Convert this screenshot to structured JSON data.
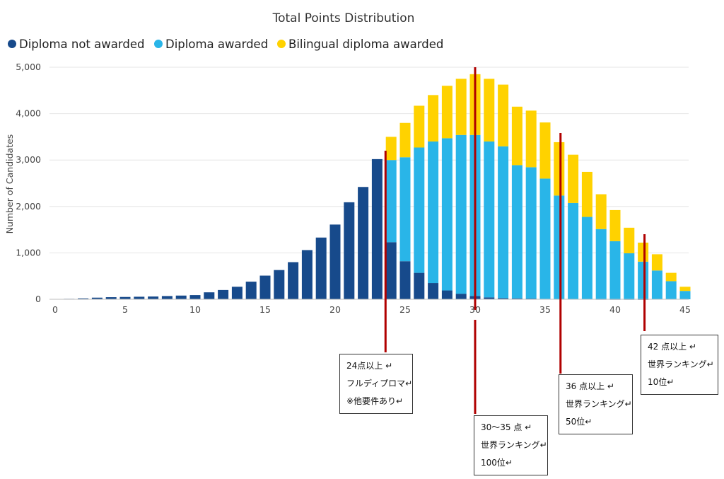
{
  "chart_data": {
    "type": "bar",
    "stacked": true,
    "title": "Total Points Distribution",
    "xlabel": "",
    "ylabel": "Number of Candidates",
    "xlim": [
      0,
      45
    ],
    "ylim": [
      0,
      5000
    ],
    "x_ticks": [
      "0",
      "5",
      "10",
      "15",
      "20",
      "25",
      "30",
      "35",
      "40",
      "45"
    ],
    "y_ticks": [
      "0",
      "1,000",
      "2,000",
      "3,000",
      "4,000",
      "5,000"
    ],
    "grid": true,
    "legend_position": "top-left",
    "x": [
      1,
      2,
      3,
      4,
      5,
      6,
      7,
      8,
      9,
      10,
      11,
      12,
      13,
      14,
      15,
      16,
      17,
      18,
      19,
      20,
      21,
      22,
      23,
      24,
      25,
      26,
      27,
      28,
      29,
      30,
      31,
      32,
      33,
      34,
      35,
      36,
      37,
      38,
      39,
      40,
      41,
      42,
      43,
      44,
      45
    ],
    "series": [
      {
        "name": "Diploma not awarded",
        "color": "#174A8B",
        "values": [
          10,
          20,
          35,
          45,
          50,
          55,
          60,
          70,
          80,
          90,
          150,
          200,
          270,
          380,
          510,
          630,
          800,
          1060,
          1330,
          1610,
          2090,
          2420,
          3020,
          1230,
          820,
          570,
          350,
          190,
          120,
          70,
          40,
          25,
          20,
          15,
          10,
          5,
          5,
          5,
          3,
          2,
          2,
          1,
          0,
          0,
          0
        ]
      },
      {
        "name": "Diploma awarded",
        "color": "#29B5E8",
        "values": [
          0,
          0,
          0,
          0,
          0,
          0,
          0,
          0,
          0,
          0,
          0,
          0,
          0,
          0,
          0,
          0,
          0,
          0,
          0,
          0,
          0,
          0,
          0,
          1770,
          2240,
          2700,
          3050,
          3280,
          3420,
          3470,
          3360,
          3270,
          2870,
          2830,
          2590,
          2230,
          2070,
          1770,
          1510,
          1250,
          990,
          810,
          620,
          390,
          180
        ]
      },
      {
        "name": "Bilingual diploma awarded",
        "color": "#FFD200",
        "values": [
          0,
          0,
          0,
          0,
          0,
          0,
          0,
          0,
          0,
          0,
          0,
          0,
          0,
          0,
          0,
          0,
          0,
          0,
          0,
          0,
          0,
          0,
          0,
          500,
          740,
          900,
          1000,
          1130,
          1210,
          1310,
          1350,
          1330,
          1260,
          1220,
          1210,
          1150,
          1040,
          970,
          750,
          670,
          550,
          410,
          350,
          180,
          90
        ]
      }
    ],
    "annotations": [
      {
        "x": 23.6,
        "lines": [
          "24点以上 ↵",
          "フルディプロマ↵",
          "※他要件あり↵"
        ]
      },
      {
        "x": 30,
        "lines": [
          "30～35 点 ↵",
          "世界ランキング↵",
          "100位↵"
        ]
      },
      {
        "x": 36.1,
        "lines": [
          "36 点以上 ↵",
          "世界ランキング↵",
          "50位↵"
        ]
      },
      {
        "x": 42.1,
        "lines": [
          "42 点以上 ↵",
          "世界ランキング↵",
          "10位↵"
        ]
      }
    ]
  }
}
